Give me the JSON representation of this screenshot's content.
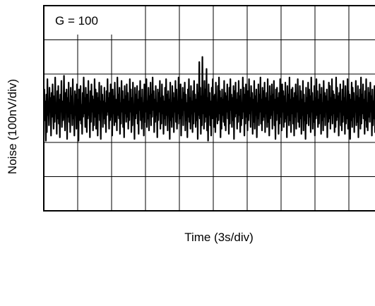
{
  "chart_data": {
    "type": "line",
    "title": "",
    "annotation": "G = 100",
    "xlabel": "Time (3s/div)",
    "ylabel": "Noise (100nV/div)",
    "x_divisions": 10,
    "y_divisions": 6,
    "xlim": [
      0,
      30
    ],
    "ylim": [
      -300,
      300
    ],
    "x_unit_per_div": "3s",
    "y_unit_per_div": "100nV",
    "grid": true,
    "line_color": "#000000",
    "grid_color": "#000000",
    "series": [
      {
        "values": [
          0,
          55,
          -35,
          20,
          -95,
          40,
          -70,
          85,
          -20,
          10,
          -50,
          60,
          -10,
          30,
          -80,
          45,
          -25,
          70,
          -5,
          -60,
          35,
          -40,
          90,
          -15,
          15,
          -75,
          50,
          -30,
          65,
          -45,
          25,
          -85,
          40,
          -10,
          80,
          -55,
          20,
          -35,
          10,
          95,
          -20,
          -65,
          45,
          -5,
          55,
          -90,
          30,
          -25,
          75,
          -40,
          15,
          -70,
          60,
          -15,
          35,
          -50,
          85,
          -30,
          5,
          -80,
          50,
          -20,
          40,
          -60,
          70,
          -10,
          25,
          -95,
          55,
          -35,
          20,
          65,
          -45,
          10,
          -75,
          45,
          -25,
          90,
          -15,
          30,
          -55,
          60,
          -5,
          -70,
          40,
          -30,
          80,
          -20,
          15,
          -85,
          50,
          -40,
          70,
          -10,
          35,
          -65,
          25,
          -50,
          85,
          -25,
          55,
          -60,
          10,
          45,
          -80,
          30,
          -15,
          75,
          -35,
          20,
          -90,
          65,
          -5,
          40,
          -55,
          20,
          -30,
          60,
          -45,
          15,
          -70,
          50,
          -20,
          85,
          -10,
          30,
          -60,
          45,
          -35,
          70,
          -25,
          10,
          -80,
          55,
          -15,
          35,
          -50,
          75,
          -5,
          -40,
          25,
          -65,
          90,
          -20,
          40,
          -30,
          60,
          -75,
          15,
          -45,
          80,
          -10,
          50,
          -55,
          25,
          -85,
          65,
          -15,
          35,
          -40,
          70,
          -25,
          45,
          -60,
          20,
          -35,
          85,
          -10,
          55,
          -70,
          30,
          -50,
          75,
          -20,
          10,
          -90,
          60,
          -30,
          40,
          -15,
          65,
          -45,
          25,
          -75,
          50,
          -5,
          80,
          -35,
          30,
          -60,
          55,
          -25,
          15,
          -80,
          70,
          -40,
          45,
          -10,
          85,
          -55,
          20,
          -30,
          60,
          -65,
          35,
          -15,
          75,
          -50,
          40,
          -25,
          90,
          -5,
          50,
          -70,
          25,
          -40,
          65,
          -20,
          15,
          -85,
          55,
          -35,
          45,
          -10,
          80,
          -60,
          30,
          -45,
          70,
          -15,
          35,
          -75,
          20,
          -30,
          60,
          -50,
          85,
          -20,
          40,
          -65,
          50,
          -5,
          25,
          -90,
          75,
          -35,
          15,
          -55,
          65,
          -25,
          45,
          -70,
          30,
          -10,
          80,
          -40,
          55,
          -60,
          20,
          -15,
          90,
          -45,
          35,
          -30,
          70,
          -80,
          25,
          -20,
          60,
          -50,
          45,
          -5,
          75,
          -65,
          40,
          -35,
          15,
          -85,
          55,
          -25,
          85,
          -40,
          30,
          -60,
          65,
          -15,
          20,
          -70,
          50,
          -45,
          80,
          -10,
          40,
          -55,
          25,
          -35,
          70,
          -90,
          45,
          -20,
          135,
          -30,
          60,
          -75,
          35,
          -50,
          150,
          -15,
          25,
          -60,
          80,
          -40,
          55,
          -25,
          115,
          -65,
          30,
          -95,
          70,
          -20,
          45,
          -50,
          20,
          -80,
          60,
          -30,
          85,
          -10,
          35,
          -55,
          40,
          -70,
          75,
          -25,
          15,
          -45,
          65,
          -35,
          90,
          -15,
          50,
          -85,
          30,
          -60,
          55,
          -20,
          25,
          -40,
          80,
          -50,
          45,
          -65,
          35,
          -10,
          70,
          -30,
          20,
          -75,
          60,
          -45,
          85,
          -5,
          40,
          -55,
          30,
          -35,
          65,
          -90,
          50,
          -25,
          75,
          -15,
          25,
          -60,
          45,
          -40,
          80,
          -20,
          35,
          -70,
          55,
          -50,
          15,
          -30,
          90,
          -10,
          60,
          -80,
          40,
          -45,
          70,
          -25,
          20,
          -65,
          50,
          -35,
          85,
          -15,
          30,
          -55,
          65,
          -5,
          45,
          -75,
          25,
          -40,
          80,
          -60,
          35,
          -20,
          55,
          -85,
          15,
          -30,
          70,
          -50,
          40,
          -10,
          90,
          -45,
          25,
          -65,
          60,
          -35,
          50,
          -25,
          75,
          -70,
          30,
          -15,
          45,
          -55,
          85,
          -40,
          20,
          -80,
          65,
          -30,
          35,
          -20,
          70,
          -60,
          40,
          -5,
          80,
          -50,
          25,
          -90,
          55,
          -35,
          60,
          -15,
          30,
          -75,
          45,
          -45,
          85,
          -25,
          20,
          -65,
          70,
          -10,
          50,
          -55,
          35,
          -40,
          75,
          -30,
          15,
          -85,
          65,
          -20,
          40,
          -50,
          90,
          -35,
          25,
          -70,
          55,
          -15,
          60,
          -45,
          30,
          -80,
          45,
          -25,
          70,
          -60,
          35,
          -10,
          85,
          -40,
          20,
          -55,
          65,
          -30,
          50,
          -75,
          25,
          -20,
          80,
          -65,
          40,
          -35,
          15,
          -90,
          60,
          -45,
          30,
          -15,
          75,
          -50,
          55,
          -25,
          35,
          -70,
          90,
          -10,
          45,
          -60,
          20,
          -40,
          65,
          -80,
          30,
          -30,
          85,
          -20,
          50,
          -55,
          25,
          -45,
          70,
          -15,
          40,
          -75,
          60,
          -35,
          15,
          -65,
          80,
          -25,
          45,
          -50,
          35,
          -10,
          55,
          -85,
          20,
          -40,
          75,
          -30,
          65,
          -60,
          30,
          -20,
          85,
          -45,
          50,
          -15,
          40,
          -70,
          25,
          -55,
          90,
          -35,
          60,
          -25,
          35,
          -80,
          45,
          -10,
          70,
          -50,
          20,
          -65,
          55,
          -40,
          80,
          -20,
          30,
          -75,
          65,
          -45,
          15,
          -30,
          85,
          -60,
          50,
          -15,
          40,
          -90,
          25,
          -35,
          75,
          -55,
          60,
          -25,
          45,
          -70,
          20,
          -10,
          80,
          -50,
          35,
          -40,
          65,
          -85,
          30,
          -20,
          55,
          -60,
          90,
          -45,
          40,
          -15,
          70,
          -30,
          25,
          -75,
          50,
          -35,
          85,
          -55,
          15,
          -65,
          60,
          -25,
          45,
          -40,
          75,
          -10,
          35,
          -80,
          55,
          -50,
          20,
          -30,
          65,
          -70,
          40,
          -15,
          80,
          -45,
          30,
          -60,
          50,
          -20,
          85,
          -35,
          25,
          -55,
          70,
          -40,
          10
        ]
      }
    ]
  }
}
